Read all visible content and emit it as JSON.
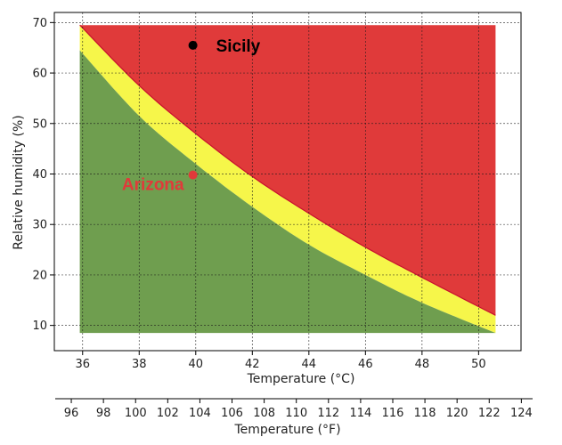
{
  "chart_data": {
    "type": "area",
    "xlabel": "Temperature (°C)",
    "ylabel": "Relative humidity (%)",
    "secondary_xlabel": "Temperature (°F)",
    "xlim": [
      35,
      51.5
    ],
    "ylim": [
      5,
      72
    ],
    "secondary_xlim": [
      95,
      124.7
    ],
    "x_ticks": [
      36,
      38,
      40,
      42,
      44,
      46,
      48,
      50
    ],
    "y_ticks": [
      10,
      20,
      30,
      40,
      50,
      60,
      70
    ],
    "secondary_x_ticks": [
      96,
      98,
      100,
      102,
      104,
      106,
      108,
      110,
      112,
      114,
      116,
      118,
      120,
      122,
      124
    ],
    "grid": true,
    "regions": [
      {
        "color": "#e03a3a",
        "x": [
          35.9,
          50.6
        ],
        "y_top": 69.5,
        "y_bottom_from": "upper boundary"
      },
      {
        "color": "#f6f64a",
        "between": [
          "upper boundary",
          "lower boundary"
        ]
      },
      {
        "color": "#6f9e4f",
        "x": [
          35.9,
          50.6
        ],
        "y_bottom": 8.5,
        "y_top_from": "lower boundary"
      }
    ],
    "boundaries": {
      "upper": {
        "x": [
          35.9,
          38,
          40,
          42,
          44,
          46,
          48,
          50.6
        ],
        "y": [
          69.5,
          57.5,
          48,
          39.5,
          32.2,
          25.5,
          19.5,
          12
        ]
      },
      "lower": {
        "x": [
          35.9,
          38,
          40,
          42,
          44,
          46,
          48,
          50.6
        ],
        "y": [
          64.5,
          51.5,
          42,
          33.5,
          26,
          20,
          14.5,
          8.5
        ]
      }
    },
    "points": [
      {
        "label": "Sicily",
        "x": 39.9,
        "y": 65.5,
        "color": "#000000"
      },
      {
        "label": "Arizona",
        "x": 39.9,
        "y": 39.8,
        "color": "#e03a3a"
      }
    ]
  }
}
